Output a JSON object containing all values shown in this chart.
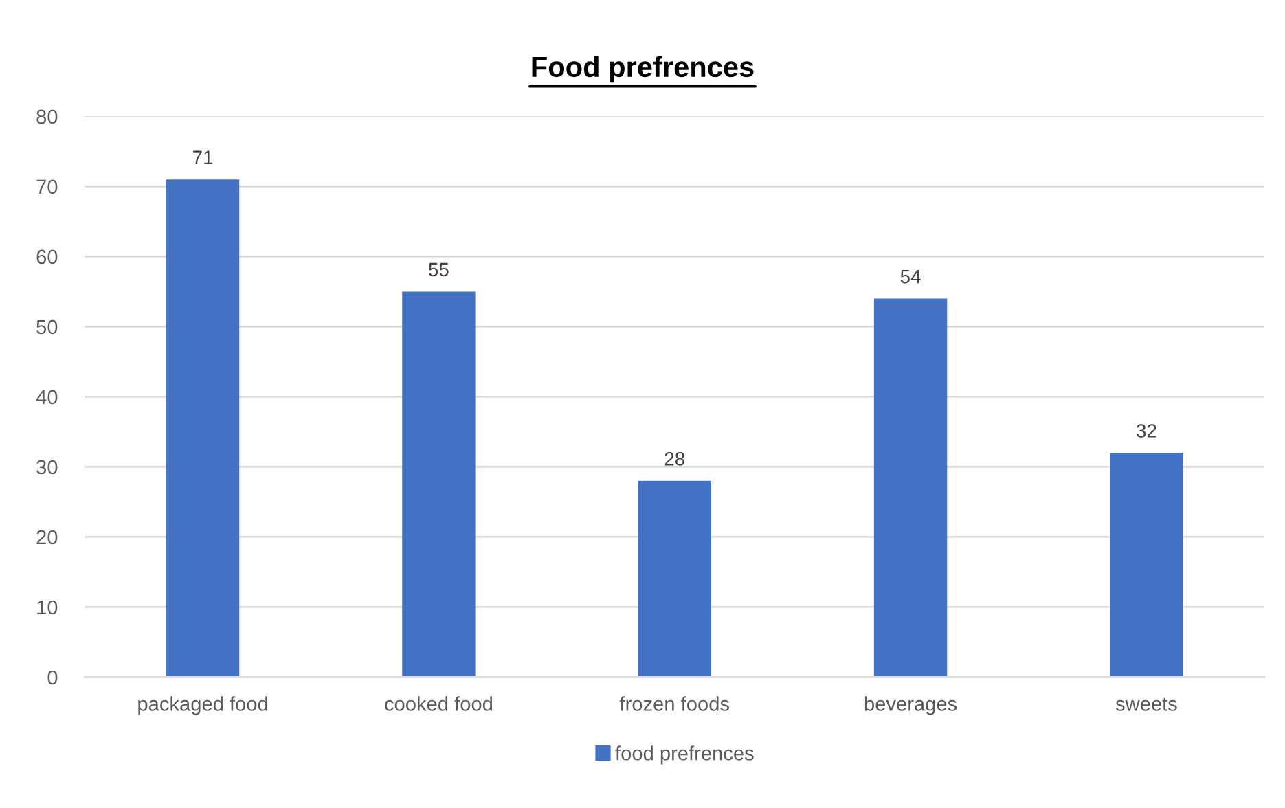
{
  "chart_data": {
    "type": "bar",
    "title": "Food prefrences",
    "categories": [
      "packaged food",
      "cooked food",
      "frozen foods",
      "beverages",
      "sweets"
    ],
    "series": [
      {
        "name": "food prefrences",
        "color": "#4472c4",
        "values": [
          71,
          55,
          28,
          54,
          32
        ]
      }
    ],
    "ylim": [
      0,
      80
    ],
    "yticks": [
      0,
      10,
      20,
      30,
      40,
      50,
      60,
      70,
      80
    ],
    "grid": "y",
    "legend": "bottom",
    "data_labels": true
  }
}
